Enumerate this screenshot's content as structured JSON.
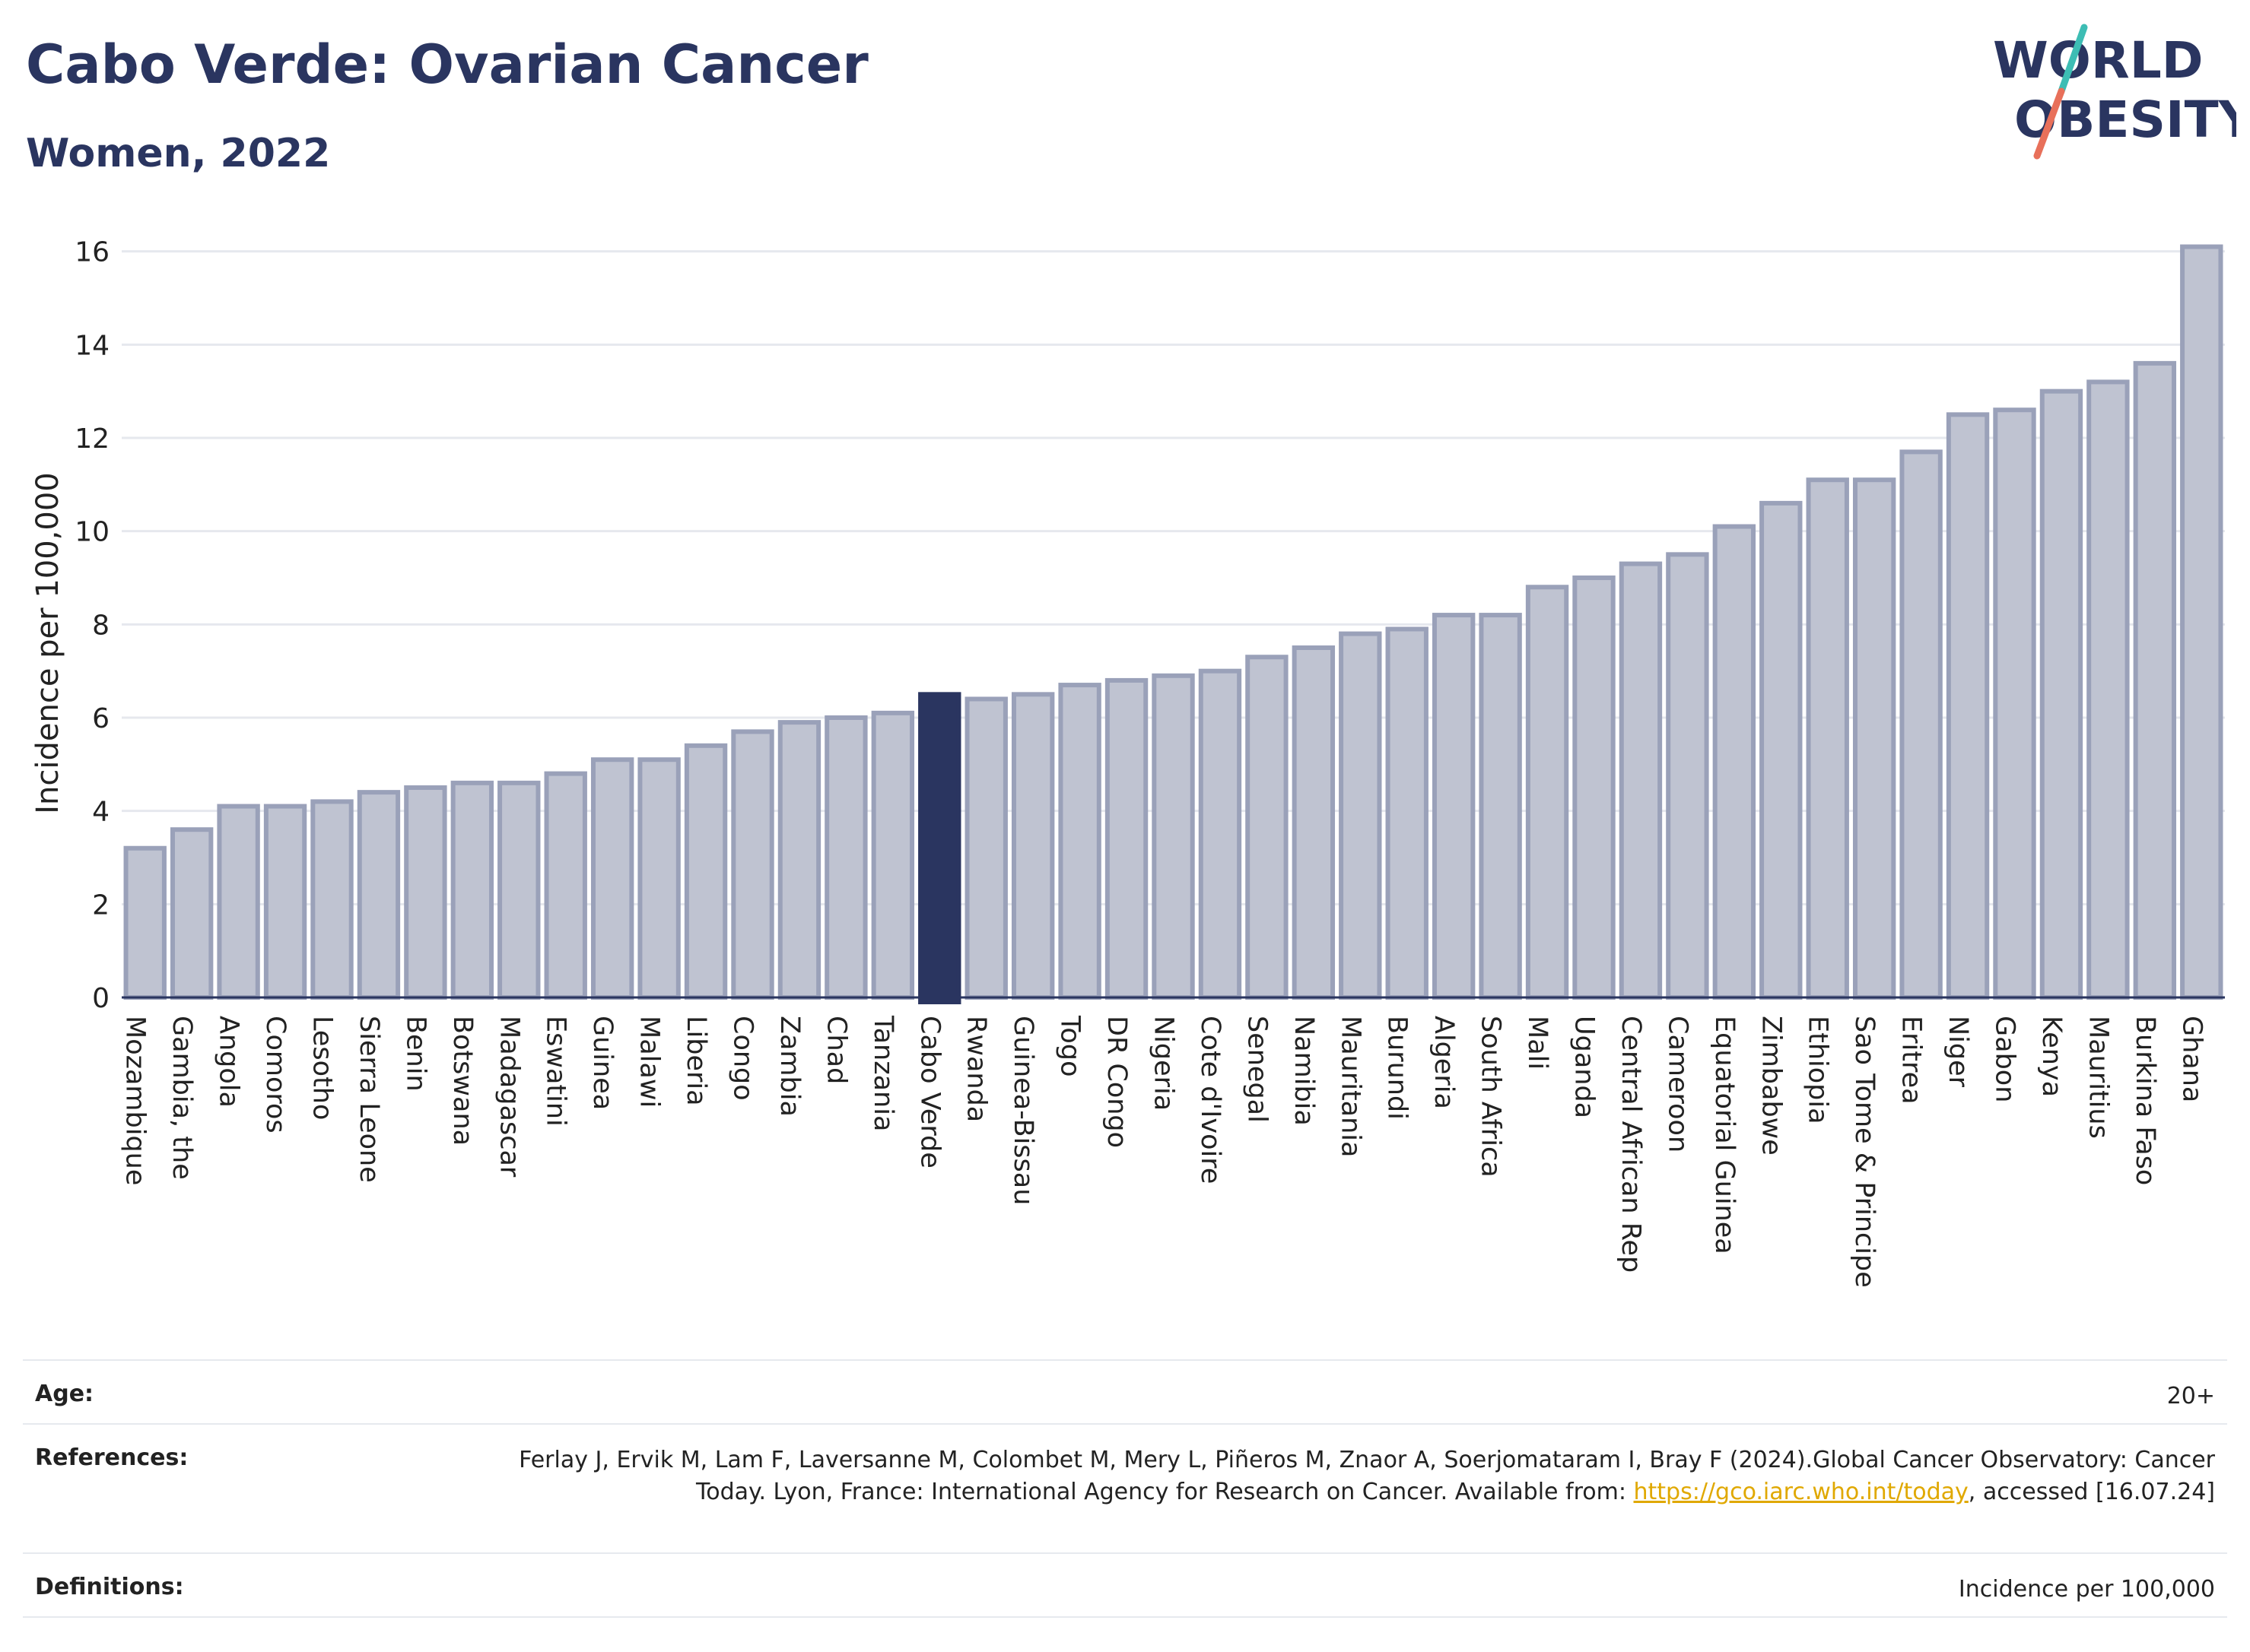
{
  "header": {
    "title": "Cabo Verde: Ovarian Cancer",
    "subtitle": "Women, 2022"
  },
  "logo": {
    "line1": "WORLD",
    "line2": "OBESITY",
    "colors": {
      "text": "#2a3560",
      "slash_teal": "#3dbdb4",
      "slash_coral": "#e8705a"
    }
  },
  "chart_data": {
    "type": "bar",
    "ylabel": "Incidence per 100,000",
    "xlabel": "",
    "ylim": [
      0,
      16.5
    ],
    "yticks": [
      0,
      2,
      4,
      6,
      8,
      10,
      12,
      14,
      16
    ],
    "grid": true,
    "highlight": "Cabo Verde",
    "colors": {
      "bar": "#bfc3d1",
      "bar_edge": "#9aa1b9",
      "highlight": "#2a3560",
      "grid": "#e6e8ee",
      "axis": "#2a3560"
    },
    "categories": [
      "Mozambique",
      "Gambia, the",
      "Angola",
      "Comoros",
      "Lesotho",
      "Sierra Leone",
      "Benin",
      "Botswana",
      "Madagascar",
      "Eswatini",
      "Guinea",
      "Malawi",
      "Liberia",
      "Congo",
      "Zambia",
      "Chad",
      "Tanzania",
      "Cabo Verde",
      "Rwanda",
      "Guinea-Bissau",
      "Togo",
      "DR Congo",
      "Nigeria",
      "Cote d'Ivoire",
      "Senegal",
      "Namibia",
      "Mauritania",
      "Burundi",
      "Algeria",
      "South Africa",
      "Mali",
      "Uganda",
      "Central African Rep",
      "Cameroon",
      "Equatorial Guinea",
      "Zimbabwe",
      "Ethiopia",
      "Sao Tome & Principe",
      "Eritrea",
      "Niger",
      "Gabon",
      "Kenya",
      "Mauritius",
      "Burkina Faso",
      "Ghana"
    ],
    "values": [
      3.2,
      3.6,
      4.1,
      4.1,
      4.2,
      4.4,
      4.5,
      4.6,
      4.6,
      4.8,
      5.1,
      5.1,
      5.4,
      5.7,
      5.9,
      6.0,
      6.1,
      6.5,
      6.4,
      6.5,
      6.7,
      6.8,
      6.9,
      7.0,
      7.3,
      7.5,
      7.8,
      7.9,
      8.2,
      8.2,
      8.8,
      9.0,
      9.3,
      9.5,
      10.1,
      10.6,
      11.1,
      11.1,
      11.7,
      12.5,
      12.6,
      13.0,
      13.2,
      13.6,
      16.1
    ]
  },
  "info": {
    "age_label": "Age:",
    "age_value": "20+",
    "references_label": "References:",
    "references_text": "Ferlay J, Ervik M, Lam F, Laversanne M, Colombet M, Mery L, Piñeros M, Znaor A, Soerjomataram I, Bray F (2024).Global Cancer Observatory: Cancer Today. Lyon, France: International Agency for Research on Cancer. Available from: ",
    "references_link": "https://gco.iarc.who.int/today",
    "references_suffix": ", accessed [16.07.24]",
    "definitions_label": "Definitions:",
    "definitions_value": "Incidence per 100,000"
  }
}
